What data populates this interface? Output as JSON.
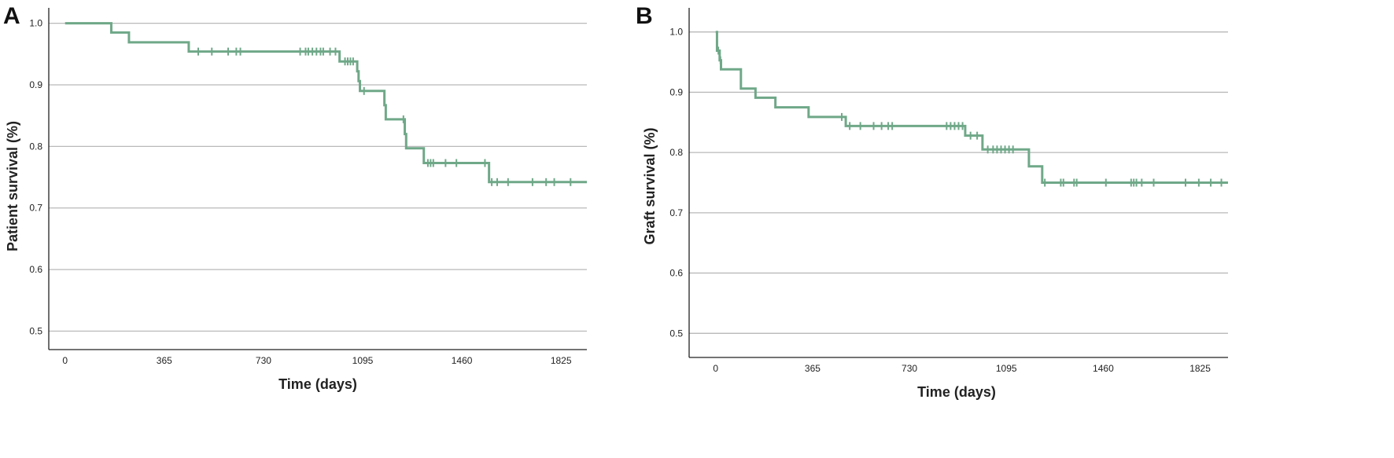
{
  "chart_data": [
    {
      "type": "line",
      "panel_label": "A",
      "title": "",
      "xlabel": "Time (days)",
      "ylabel": "Patient survival (%)",
      "xlim": [
        -60,
        1920
      ],
      "ylim": [
        0.47,
        1.025
      ],
      "x_ticks": [
        0,
        365,
        730,
        1095,
        1460,
        1825
      ],
      "x_tick_labels": [
        "0",
        "365",
        "730",
        "1095",
        "1460",
        "1825"
      ],
      "y_ticks": [
        0.5,
        0.6,
        0.7,
        0.8,
        0.9,
        1.0
      ],
      "y_tick_labels": [
        "0.5",
        "0.6",
        "0.7",
        "0.8",
        "0.9",
        "1.0"
      ],
      "grid": "horizontal",
      "line_color": "#6fa888",
      "series": [
        {
          "steps": [
            [
              0,
              1.0
            ],
            [
              170,
              0.985
            ],
            [
              235,
              0.969
            ],
            [
              455,
              0.954
            ],
            [
              1010,
              0.938
            ],
            [
              1075,
              0.922
            ],
            [
              1080,
              0.906
            ],
            [
              1085,
              0.89
            ],
            [
              1175,
              0.867
            ],
            [
              1180,
              0.844
            ],
            [
              1250,
              0.82
            ],
            [
              1255,
              0.797
            ],
            [
              1320,
              0.773
            ],
            [
              1560,
              0.742
            ]
          ],
          "x_end": 1920,
          "censored": [
            [
              490,
              0.954
            ],
            [
              540,
              0.954
            ],
            [
              600,
              0.954
            ],
            [
              630,
              0.954
            ],
            [
              645,
              0.954
            ],
            [
              865,
              0.954
            ],
            [
              885,
              0.954
            ],
            [
              895,
              0.954
            ],
            [
              910,
              0.954
            ],
            [
              925,
              0.954
            ],
            [
              940,
              0.954
            ],
            [
              950,
              0.954
            ],
            [
              975,
              0.954
            ],
            [
              995,
              0.954
            ],
            [
              1030,
              0.938
            ],
            [
              1040,
              0.938
            ],
            [
              1050,
              0.938
            ],
            [
              1060,
              0.938
            ],
            [
              1100,
              0.89
            ],
            [
              1245,
              0.844
            ],
            [
              1335,
              0.773
            ],
            [
              1345,
              0.773
            ],
            [
              1355,
              0.773
            ],
            [
              1400,
              0.773
            ],
            [
              1440,
              0.773
            ],
            [
              1545,
              0.773
            ],
            [
              1570,
              0.742
            ],
            [
              1590,
              0.742
            ],
            [
              1630,
              0.742
            ],
            [
              1720,
              0.742
            ],
            [
              1770,
              0.742
            ],
            [
              1800,
              0.742
            ],
            [
              1860,
              0.742
            ]
          ]
        }
      ]
    },
    {
      "type": "line",
      "panel_label": "B",
      "title": "",
      "xlabel": "Time (days)",
      "ylabel": "Graft survival (%)",
      "xlim": [
        -100,
        1930
      ],
      "ylim": [
        0.46,
        1.04
      ],
      "x_ticks": [
        0,
        365,
        730,
        1095,
        1460,
        1825
      ],
      "x_tick_labels": [
        "0",
        "365",
        "730",
        "1095",
        "1460",
        "1825"
      ],
      "y_ticks": [
        0.5,
        0.6,
        0.7,
        0.8,
        0.9,
        1.0
      ],
      "y_tick_labels": [
        "0.5",
        "0.6",
        "0.7",
        "0.8",
        "0.9",
        "1.0"
      ],
      "grid": "horizontal",
      "line_color": "#6fa888",
      "series": [
        {
          "steps": [
            [
              0,
              1.0
            ],
            [
              5,
              0.969
            ],
            [
              15,
              0.953
            ],
            [
              20,
              0.938
            ],
            [
              95,
              0.906
            ],
            [
              150,
              0.891
            ],
            [
              225,
              0.875
            ],
            [
              350,
              0.859
            ],
            [
              490,
              0.844
            ],
            [
              940,
              0.828
            ],
            [
              1005,
              0.805
            ],
            [
              1180,
              0.777
            ],
            [
              1230,
              0.75
            ]
          ],
          "x_end": 1930,
          "censored": [
            [
              10,
              0.969
            ],
            [
              18,
              0.953
            ],
            [
              475,
              0.859
            ],
            [
              505,
              0.844
            ],
            [
              545,
              0.844
            ],
            [
              595,
              0.844
            ],
            [
              625,
              0.844
            ],
            [
              650,
              0.844
            ],
            [
              665,
              0.844
            ],
            [
              870,
              0.844
            ],
            [
              885,
              0.844
            ],
            [
              900,
              0.844
            ],
            [
              915,
              0.844
            ],
            [
              930,
              0.844
            ],
            [
              960,
              0.828
            ],
            [
              985,
              0.828
            ],
            [
              1025,
              0.805
            ],
            [
              1045,
              0.805
            ],
            [
              1060,
              0.805
            ],
            [
              1075,
              0.805
            ],
            [
              1090,
              0.805
            ],
            [
              1105,
              0.805
            ],
            [
              1120,
              0.805
            ],
            [
              1240,
              0.75
            ],
            [
              1300,
              0.75
            ],
            [
              1310,
              0.75
            ],
            [
              1350,
              0.75
            ],
            [
              1360,
              0.75
            ],
            [
              1470,
              0.75
            ],
            [
              1565,
              0.75
            ],
            [
              1575,
              0.75
            ],
            [
              1585,
              0.75
            ],
            [
              1605,
              0.75
            ],
            [
              1650,
              0.75
            ],
            [
              1770,
              0.75
            ],
            [
              1820,
              0.75
            ],
            [
              1865,
              0.75
            ],
            [
              1905,
              0.75
            ]
          ]
        }
      ]
    }
  ]
}
